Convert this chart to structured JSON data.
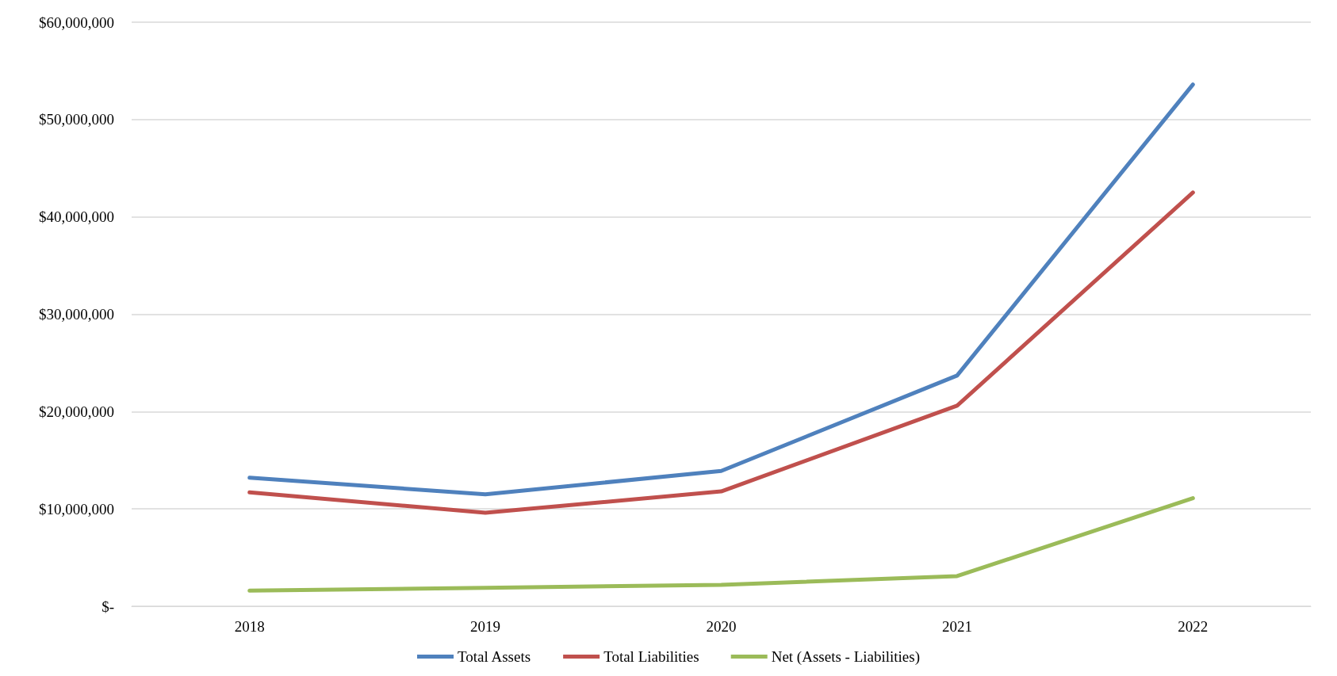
{
  "chart_data": {
    "type": "line",
    "categories": [
      "2018",
      "2019",
      "2020",
      "2021",
      "2022"
    ],
    "series": [
      {
        "name": "Total Assets",
        "color": "#4f81bd",
        "values": [
          13200000,
          11500000,
          13900000,
          23700000,
          53600000
        ]
      },
      {
        "name": "Total Liabilities",
        "color": "#c0504d",
        "values": [
          11700000,
          9600000,
          11800000,
          20600000,
          42500000
        ]
      },
      {
        "name": "Net (Assets - Liabilities)",
        "color": "#9bbb59",
        "values": [
          1600000,
          1900000,
          2200000,
          3100000,
          11100000
        ]
      }
    ],
    "ylim": [
      0,
      60000000
    ],
    "yticks": [
      {
        "value": 0,
        "label": "$-"
      },
      {
        "value": 10000000,
        "label": "$10,000,000"
      },
      {
        "value": 20000000,
        "label": "$20,000,000"
      },
      {
        "value": 30000000,
        "label": "$30,000,000"
      },
      {
        "value": 40000000,
        "label": "$40,000,000"
      },
      {
        "value": 50000000,
        "label": "$50,000,000"
      },
      {
        "value": 60000000,
        "label": "$60,000,000"
      }
    ],
    "grid": "y",
    "legend": "bottom",
    "marker": "none",
    "line_style": "solid"
  }
}
